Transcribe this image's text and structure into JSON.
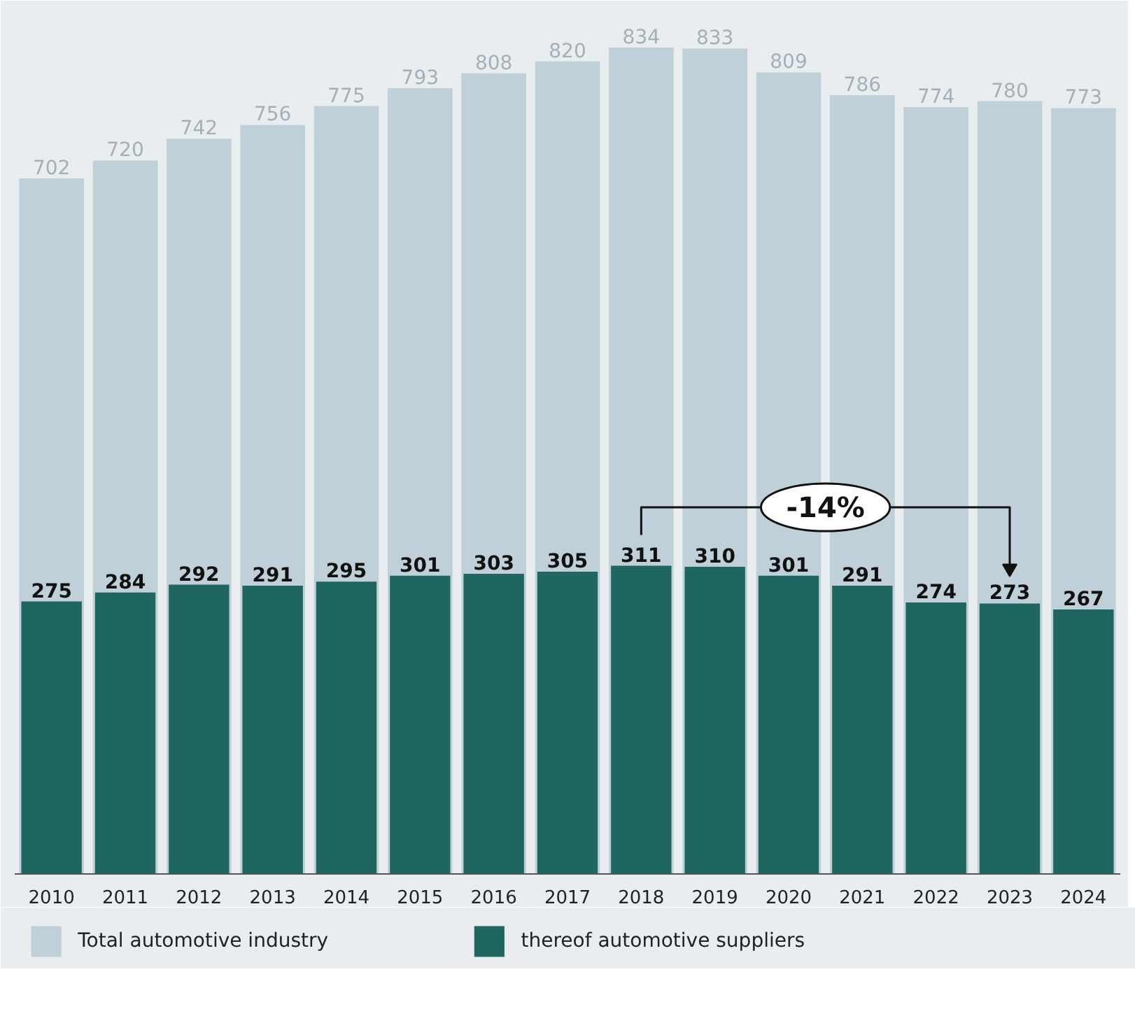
{
  "chart_data": {
    "type": "bar",
    "categories": [
      "2010",
      "2011",
      "2012",
      "2013",
      "2014",
      "2015",
      "2016",
      "2017",
      "2018",
      "2019",
      "2020",
      "2021",
      "2022",
      "2023",
      "2024"
    ],
    "series": [
      {
        "name": "Total automotive industry",
        "color": "#bfd0d8",
        "values": [
          702,
          720,
          742,
          756,
          775,
          793,
          808,
          820,
          834,
          833,
          809,
          786,
          774,
          780,
          773
        ]
      },
      {
        "name": "thereof automotive suppliers",
        "color": "#1f6660",
        "values": [
          275,
          284,
          292,
          291,
          295,
          301,
          303,
          305,
          311,
          310,
          301,
          291,
          274,
          273,
          267
        ]
      }
    ],
    "data_labels": true,
    "legend": "bottom",
    "grid": false,
    "annotations": [
      "-14%"
    ]
  }
}
